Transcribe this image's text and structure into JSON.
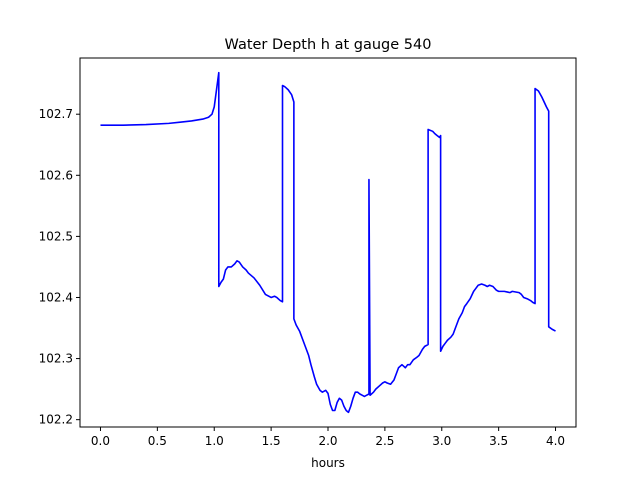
{
  "chart_data": {
    "type": "line",
    "title": "Water Depth h at gauge 540",
    "xlabel": "hours",
    "ylabel": "",
    "xlim": [
      -0.18,
      4.18
    ],
    "ylim": [
      102.188,
      102.792
    ],
    "xticks": [
      0.0,
      0.5,
      1.0,
      1.5,
      2.0,
      2.5,
      3.0,
      3.5,
      4.0
    ],
    "xtick_labels": [
      "0.0",
      "0.5",
      "1.0",
      "1.5",
      "2.0",
      "2.5",
      "3.0",
      "3.5",
      "4.0"
    ],
    "yticks": [
      102.2,
      102.3,
      102.4,
      102.5,
      102.6,
      102.7
    ],
    "ytick_labels": [
      "102.2",
      "102.3",
      "102.4",
      "102.5",
      "102.6",
      "102.7"
    ],
    "grid": false,
    "legend": "none",
    "series": [
      {
        "color": "#0000ff",
        "x": [
          0.0,
          0.2,
          0.4,
          0.6,
          0.7,
          0.8,
          0.9,
          0.95,
          0.98,
          1.0,
          1.02,
          1.04,
          1.04,
          1.06,
          1.08,
          1.1,
          1.12,
          1.15,
          1.18,
          1.2,
          1.22,
          1.25,
          1.28,
          1.3,
          1.35,
          1.4,
          1.45,
          1.5,
          1.53,
          1.55,
          1.58,
          1.6,
          1.6,
          1.62,
          1.65,
          1.68,
          1.7,
          1.7,
          1.72,
          1.75,
          1.78,
          1.8,
          1.83,
          1.85,
          1.88,
          1.9,
          1.93,
          1.95,
          1.98,
          2.0,
          2.02,
          2.04,
          2.06,
          2.08,
          2.1,
          2.12,
          2.14,
          2.16,
          2.18,
          2.2,
          2.22,
          2.24,
          2.26,
          2.28,
          2.3,
          2.32,
          2.34,
          2.36,
          2.36,
          2.37,
          2.37,
          2.4,
          2.42,
          2.45,
          2.48,
          2.5,
          2.52,
          2.55,
          2.58,
          2.6,
          2.62,
          2.65,
          2.68,
          2.7,
          2.72,
          2.75,
          2.78,
          2.8,
          2.83,
          2.85,
          2.88,
          2.88,
          2.92,
          2.94,
          2.96,
          2.98,
          2.99,
          2.99,
          3.01,
          3.03,
          3.05,
          3.08,
          3.1,
          3.12,
          3.15,
          3.18,
          3.2,
          3.22,
          3.25,
          3.28,
          3.3,
          3.32,
          3.35,
          3.38,
          3.4,
          3.42,
          3.45,
          3.48,
          3.5,
          3.55,
          3.6,
          3.62,
          3.65,
          3.68,
          3.7,
          3.72,
          3.75,
          3.78,
          3.8,
          3.82,
          3.82,
          3.85,
          3.88,
          3.9,
          3.92,
          3.94,
          3.94,
          3.97,
          4.0
        ],
        "y": [
          102.682,
          102.682,
          102.683,
          102.685,
          102.687,
          102.689,
          102.692,
          102.695,
          102.7,
          102.712,
          102.74,
          102.768,
          102.418,
          102.425,
          102.43,
          102.445,
          102.45,
          102.45,
          102.455,
          102.46,
          102.458,
          102.45,
          102.445,
          102.44,
          102.432,
          102.42,
          102.405,
          102.4,
          102.402,
          102.4,
          102.395,
          102.393,
          102.747,
          102.745,
          102.74,
          102.732,
          102.72,
          102.365,
          102.355,
          102.345,
          102.33,
          102.32,
          102.305,
          102.29,
          102.27,
          102.258,
          102.248,
          102.245,
          102.248,
          102.243,
          102.225,
          102.215,
          102.215,
          102.228,
          102.235,
          102.232,
          102.222,
          102.215,
          102.212,
          102.222,
          102.235,
          102.245,
          102.245,
          102.242,
          102.24,
          102.238,
          102.24,
          102.242,
          102.593,
          102.24,
          102.24,
          102.245,
          102.25,
          102.255,
          102.26,
          102.262,
          102.26,
          102.258,
          102.265,
          102.275,
          102.285,
          102.29,
          102.285,
          102.29,
          102.29,
          102.298,
          102.302,
          102.305,
          102.315,
          102.32,
          102.323,
          102.675,
          102.672,
          102.668,
          102.665,
          102.662,
          102.665,
          102.312,
          102.32,
          102.325,
          102.33,
          102.335,
          102.34,
          102.35,
          102.365,
          102.375,
          102.385,
          102.39,
          102.398,
          102.41,
          102.415,
          102.42,
          102.422,
          102.42,
          102.418,
          102.42,
          102.418,
          102.412,
          102.41,
          102.41,
          102.408,
          102.41,
          102.409,
          102.408,
          102.405,
          102.4,
          102.398,
          102.395,
          102.392,
          102.39,
          102.742,
          102.738,
          102.728,
          102.72,
          102.712,
          102.705,
          102.352,
          102.348,
          102.345
        ]
      }
    ]
  }
}
